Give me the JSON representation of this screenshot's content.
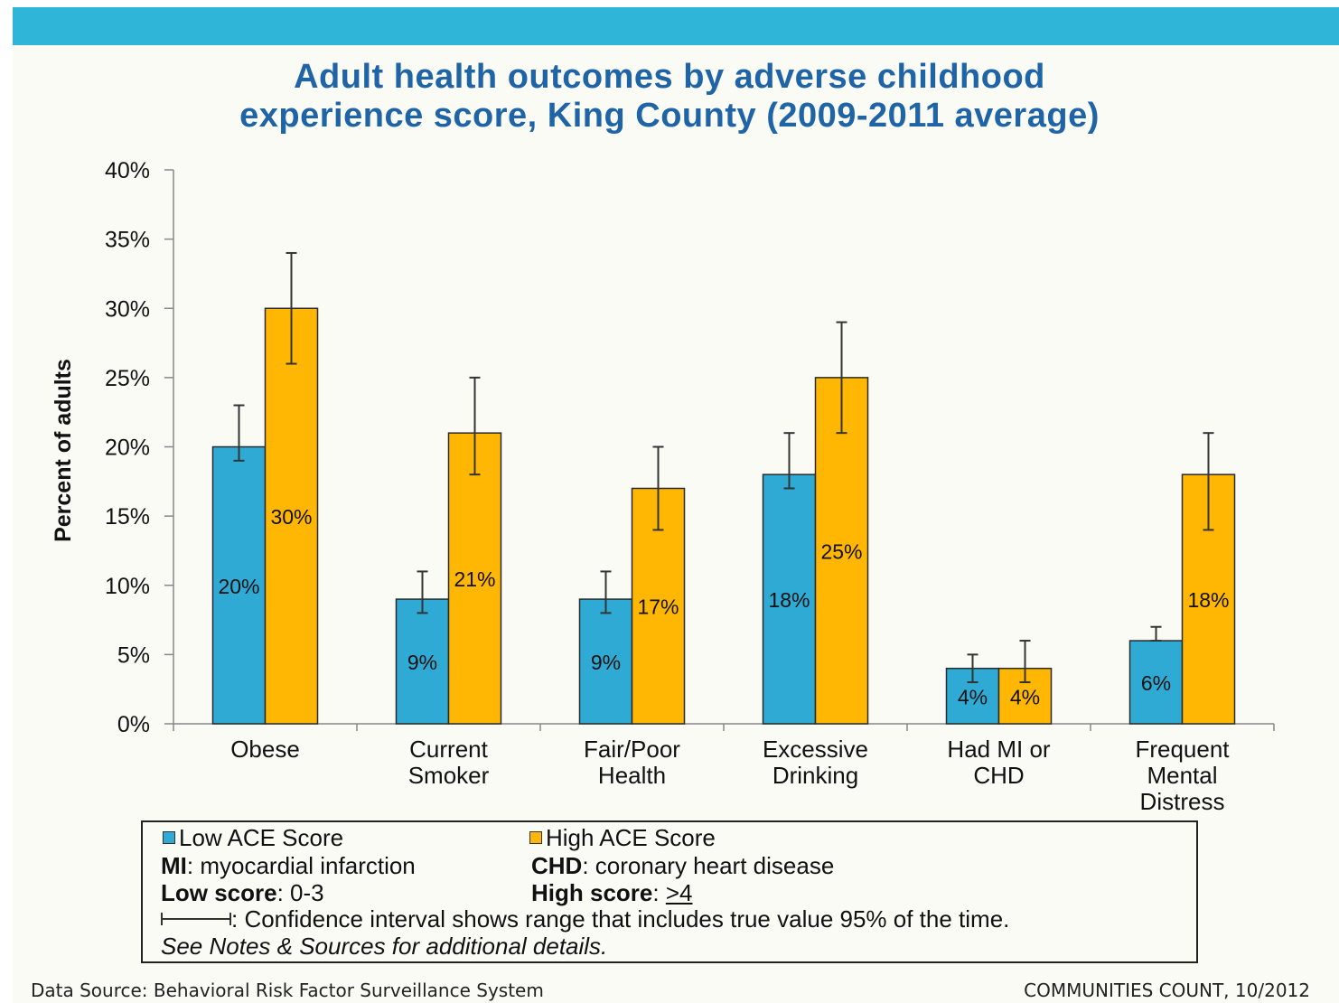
{
  "title_lines": [
    "Adult health outcomes by adverse childhood",
    "experience score, King County (2009-2011 average)"
  ],
  "chart_data": {
    "type": "bar",
    "title": "Adult health outcomes by adverse childhood experience score, King County (2009-2011 average)",
    "ylabel": "Percent of adults",
    "xlabel": "",
    "ylim": [
      0,
      40
    ],
    "yticks": [
      "0%",
      "5%",
      "10%",
      "15%",
      "20%",
      "25%",
      "30%",
      "35%",
      "40%"
    ],
    "grid": false,
    "categories": [
      [
        "Obese"
      ],
      [
        "Current",
        "Smoker"
      ],
      [
        "Fair/Poor",
        "Health"
      ],
      [
        "Excessive",
        "Drinking"
      ],
      [
        "Had MI or",
        "CHD"
      ],
      [
        "Frequent",
        "Mental",
        "Distress"
      ]
    ],
    "series": [
      {
        "name": "Low ACE Score",
        "color": "#2eaad4",
        "values": [
          20,
          9,
          9,
          18,
          4,
          6
        ],
        "labels": [
          "20%",
          "9%",
          "9%",
          "18%",
          "4%",
          "6%"
        ],
        "ci_low": [
          19,
          8,
          8,
          17,
          3,
          6
        ],
        "ci_high": [
          23,
          11,
          11,
          21,
          5,
          7
        ]
      },
      {
        "name": "High ACE Score",
        "color": "#ffb703",
        "values": [
          30,
          21,
          17,
          25,
          4,
          18
        ],
        "labels": [
          "30%",
          "21%",
          "17%",
          "25%",
          "4%",
          "18%"
        ],
        "ci_low": [
          26,
          18,
          14,
          21,
          3,
          14
        ],
        "ci_high": [
          34,
          25,
          20,
          29,
          6,
          21
        ]
      }
    ]
  },
  "legend": {
    "low_label": "Low ACE Score",
    "high_label": "High ACE Score",
    "mi_term": "MI",
    "mi_def": ": myocardial infarction",
    "chd_term": "CHD",
    "chd_def": ": coronary heart disease",
    "low_term": "Low score",
    "low_def": ": 0-3",
    "high_term": "High score",
    "high_def_prefix": ": ",
    "high_def_value": ">4",
    "ci_text": ": Confidence interval shows range that includes true value 95% of the time.",
    "notes": "See Notes & Sources for additional details."
  },
  "footer": {
    "source": "Data Source: Behavioral Risk Factor Surveillance System",
    "credit": "COMMUNITIES COUNT, 10/2012"
  },
  "colors": {
    "top_bar": "#2fb5d8",
    "title": "#1f64a6",
    "low": "#2eaad4",
    "high": "#ffb703"
  }
}
